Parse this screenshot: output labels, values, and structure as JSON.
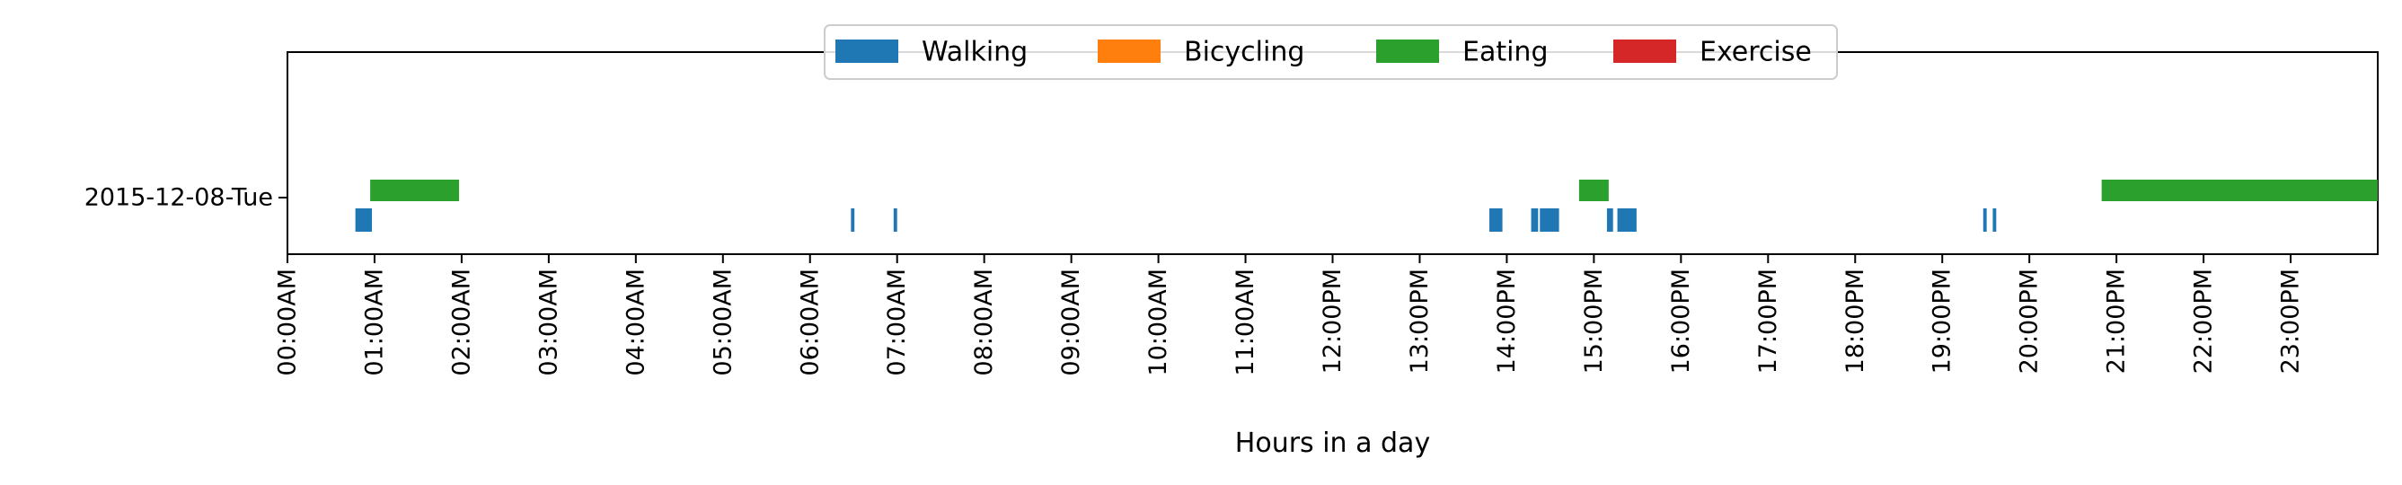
{
  "chart_data": {
    "type": "timeline",
    "title": "",
    "xlabel": "Hours in a day",
    "ylabel": "",
    "xlim": [
      0,
      24
    ],
    "x_ticks": [
      {
        "value": 0,
        "label": "00:00AM"
      },
      {
        "value": 1,
        "label": "01:00AM"
      },
      {
        "value": 2,
        "label": "02:00AM"
      },
      {
        "value": 3,
        "label": "03:00AM"
      },
      {
        "value": 4,
        "label": "04:00AM"
      },
      {
        "value": 5,
        "label": "05:00AM"
      },
      {
        "value": 6,
        "label": "06:00AM"
      },
      {
        "value": 7,
        "label": "07:00AM"
      },
      {
        "value": 8,
        "label": "08:00AM"
      },
      {
        "value": 9,
        "label": "09:00AM"
      },
      {
        "value": 10,
        "label": "10:00AM"
      },
      {
        "value": 11,
        "label": "11:00AM"
      },
      {
        "value": 12,
        "label": "12:00PM"
      },
      {
        "value": 13,
        "label": "13:00PM"
      },
      {
        "value": 14,
        "label": "14:00PM"
      },
      {
        "value": 15,
        "label": "15:00PM"
      },
      {
        "value": 16,
        "label": "16:00PM"
      },
      {
        "value": 17,
        "label": "17:00PM"
      },
      {
        "value": 18,
        "label": "18:00PM"
      },
      {
        "value": 19,
        "label": "19:00PM"
      },
      {
        "value": 20,
        "label": "20:00PM"
      },
      {
        "value": 21,
        "label": "21:00PM"
      },
      {
        "value": 22,
        "label": "22:00PM"
      },
      {
        "value": 23,
        "label": "23:00PM"
      }
    ],
    "rows": [
      {
        "label": "2015-12-08-Tue"
      }
    ],
    "legend": {
      "placement": "top-center",
      "entries": [
        {
          "name": "Walking",
          "color": "#1f77b4"
        },
        {
          "name": "Bicycling",
          "color": "#ff7f0e"
        },
        {
          "name": "Eating",
          "color": "#2ca02c"
        },
        {
          "name": "Exercise",
          "color": "#d62728"
        }
      ]
    },
    "series": [
      {
        "name": "Walking",
        "color": "#1f77b4",
        "lane": "lower",
        "intervals": [
          [
            0.78,
            0.97
          ],
          [
            6.47,
            6.51
          ],
          [
            6.96,
            7.0
          ],
          [
            13.8,
            13.95
          ],
          [
            14.28,
            14.36
          ],
          [
            14.38,
            14.6
          ],
          [
            15.15,
            15.22
          ],
          [
            15.27,
            15.49
          ],
          [
            19.47,
            19.51
          ],
          [
            19.58,
            19.62
          ]
        ]
      },
      {
        "name": "Bicycling",
        "color": "#ff7f0e",
        "lane": "lower",
        "intervals": []
      },
      {
        "name": "Eating",
        "color": "#2ca02c",
        "lane": "upper",
        "intervals": [
          [
            0.95,
            1.97
          ],
          [
            14.83,
            15.17
          ],
          [
            20.83,
            24.0
          ]
        ]
      },
      {
        "name": "Exercise",
        "color": "#d62728",
        "lane": "upper",
        "intervals": []
      }
    ]
  }
}
